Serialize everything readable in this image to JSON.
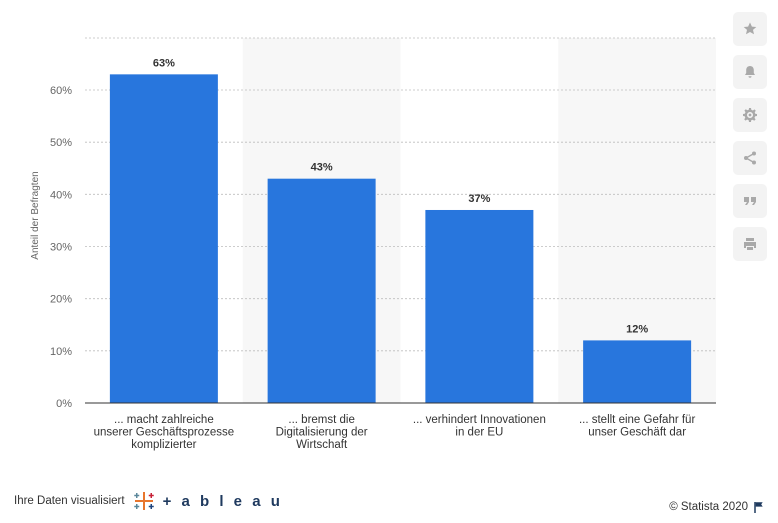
{
  "chart_data": {
    "type": "bar",
    "categories": [
      [
        "... macht zahlreiche",
        "unserer Geschäftsprozesse",
        "komplizierter"
      ],
      [
        "... bremst die",
        "Digitalisierung der",
        "Wirtschaft"
      ],
      [
        "... verhindert Innovationen",
        "in der EU"
      ],
      [
        "... stellt eine Gefahr für",
        "unser Geschäft dar"
      ]
    ],
    "values": [
      63,
      43,
      37,
      12
    ],
    "value_labels": [
      "63%",
      "43%",
      "37%",
      "12%"
    ],
    "ylabel": "Anteil der Befragten",
    "ylim": [
      0,
      60
    ],
    "yticks": [
      0,
      10,
      20,
      30,
      40,
      50,
      60
    ],
    "ytick_labels": [
      "0%",
      "10%",
      "20%",
      "30%",
      "40%",
      "50%",
      "60%"
    ],
    "bar_color": "#2876dd",
    "band_color": "#f7f7f7",
    "grid": true
  },
  "toolbar": {
    "buttons": [
      "star-icon",
      "bell-icon",
      "gear-icon",
      "share-icon",
      "quote-icon",
      "print-icon"
    ]
  },
  "footer": {
    "left_text": "Ihre Daten visualisiert",
    "brand": "+ a b l e a u",
    "copyright": "© Statista 2020"
  }
}
